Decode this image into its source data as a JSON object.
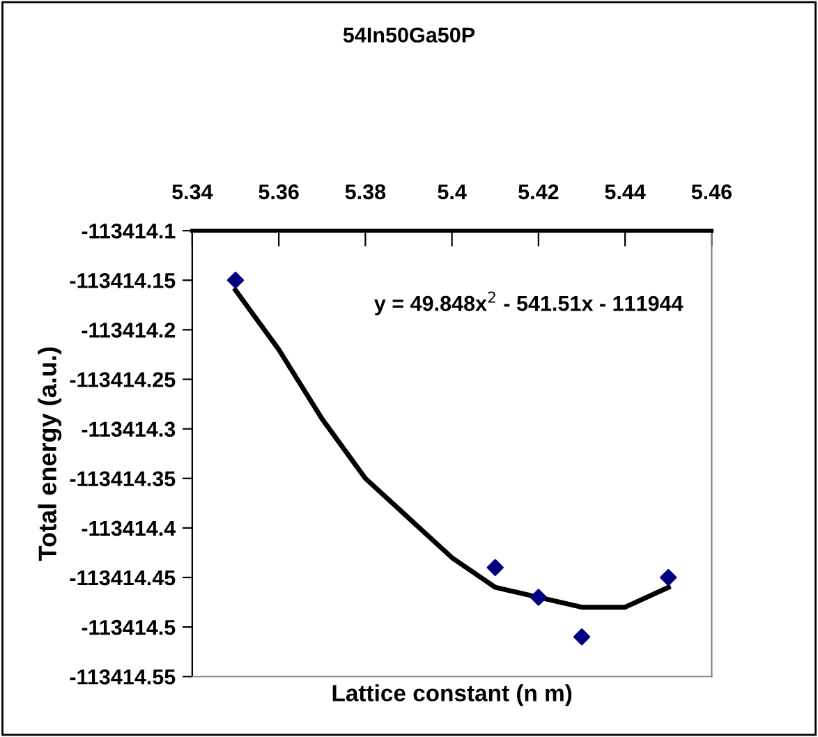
{
  "chart_data": {
    "type": "scatter",
    "title": "54In50Ga50P",
    "xlabel": "Lattice constant (n m)",
    "ylabel": "Total energy (a.u.)",
    "annotations": [
      "y = 49.848x$^{2}$ - 541.51x - 111944"
    ],
    "series": [
      {
        "color": "#000080",
        "marker": "diamond",
        "x": [
          5.35,
          5.41,
          5.42,
          5.43,
          5.45
        ],
        "values": [
          -113414.15,
          -113414.44,
          -113414.47,
          -113414.51,
          -113414.45
        ]
      },
      {
        "type": "line",
        "color": "#000000",
        "marker": "none",
        "line_style": "solid",
        "x": [
          5.35,
          5.36,
          5.37,
          5.38,
          5.39,
          5.4,
          5.41,
          5.42,
          5.43,
          5.44,
          5.45
        ],
        "values": [
          -113414.16,
          -113414.22,
          -113414.29,
          -113414.35,
          -113414.39,
          -113414.43,
          -113414.46,
          -113414.47,
          -113414.48,
          -113414.48,
          -113414.46
        ]
      }
    ],
    "xlim": [
      5.34,
      5.46
    ],
    "xticks": [
      5.34,
      5.36,
      5.38,
      5.4,
      5.42,
      5.44,
      5.46
    ],
    "ylim": [
      -113414.55,
      -113414.1
    ],
    "yticks": [
      -113414.1,
      -113414.15,
      -113414.2,
      -113414.25,
      -113414.3,
      -113414.35,
      -113414.4,
      -113414.45,
      -113414.5,
      -113414.55
    ],
    "grid": false
  }
}
